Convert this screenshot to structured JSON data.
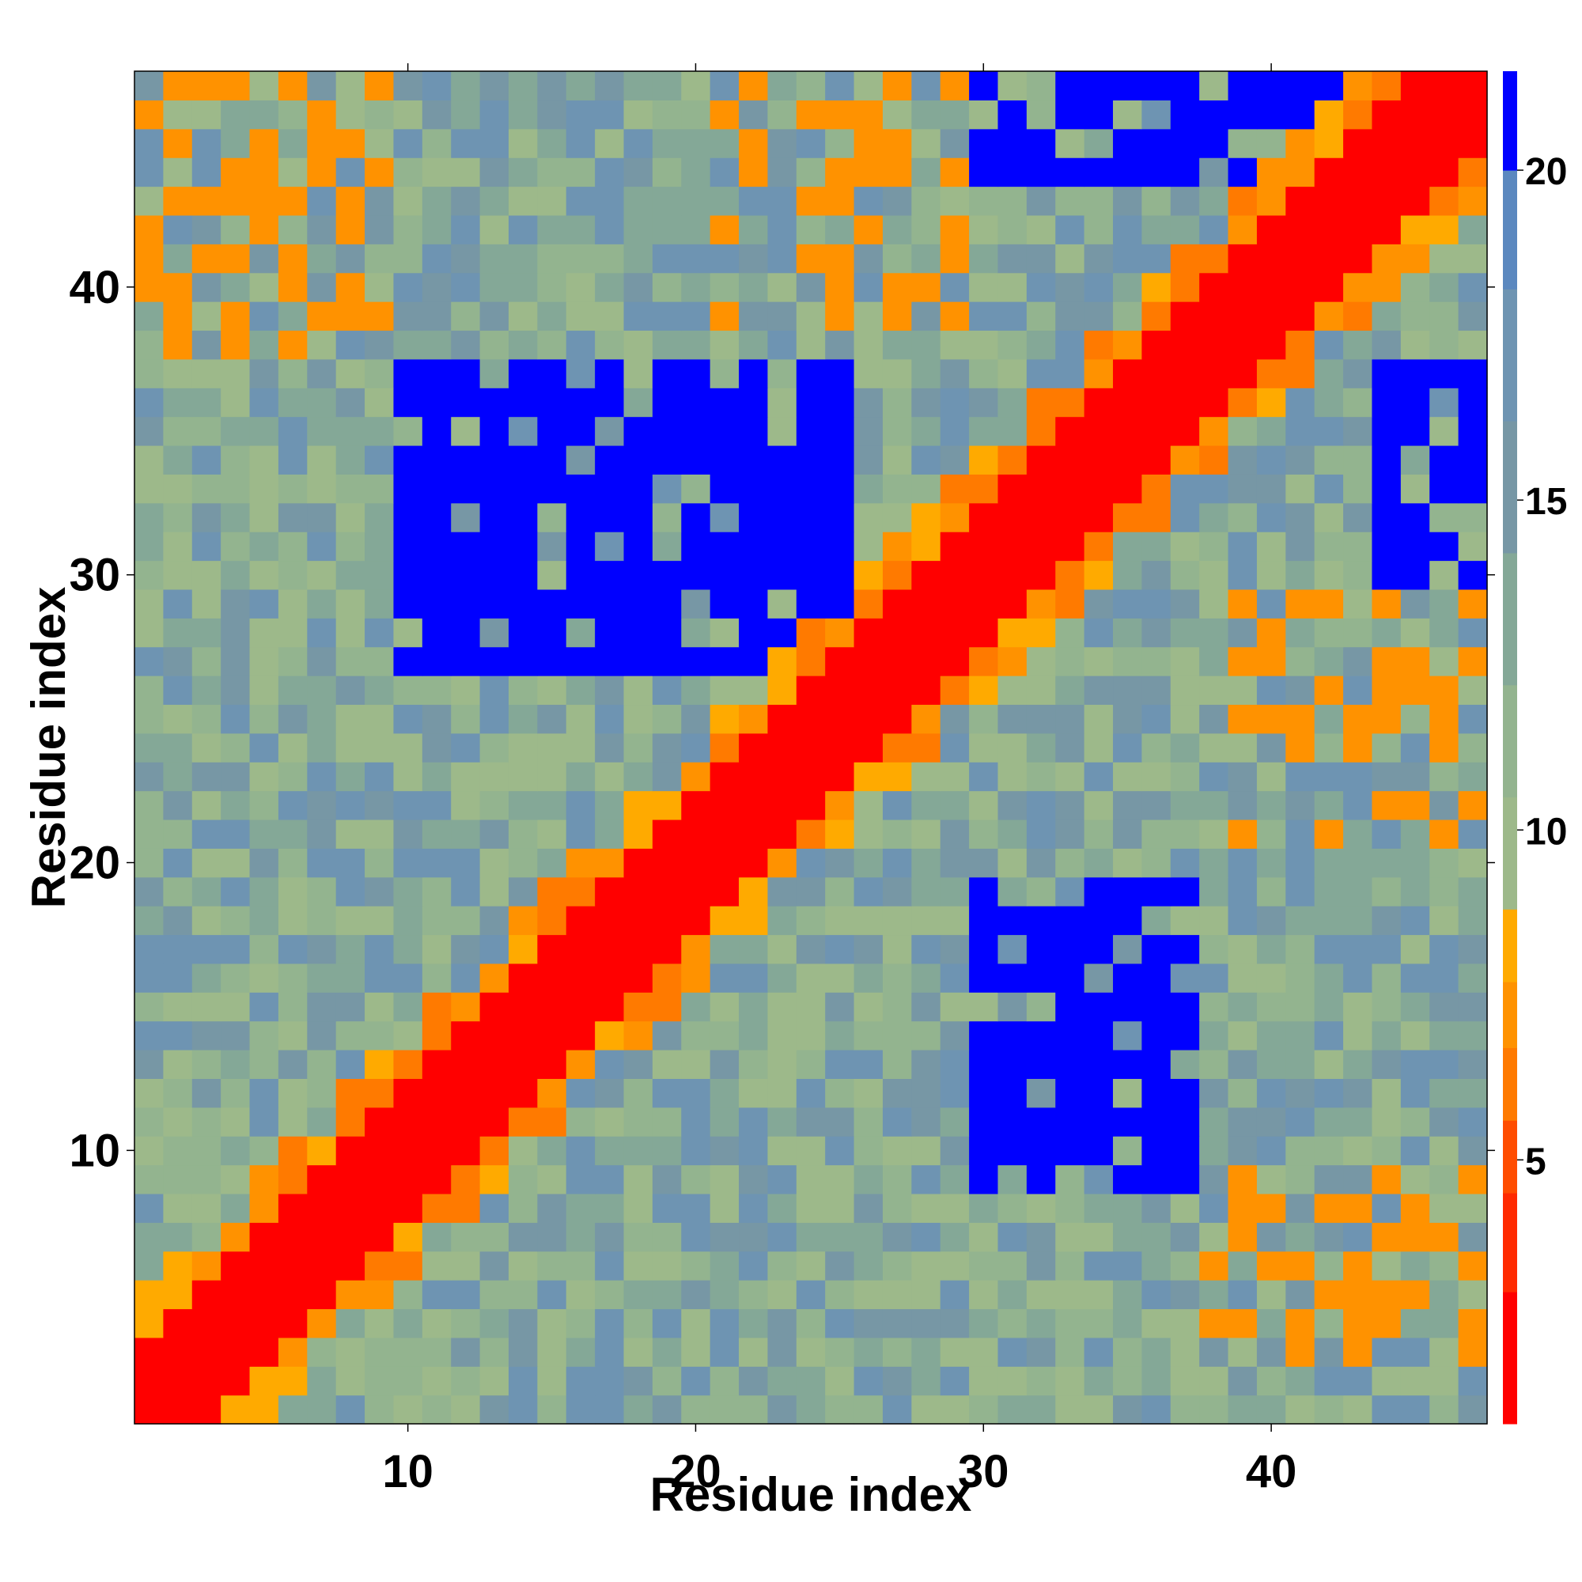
{
  "chart_data": {
    "type": "heatmap",
    "title": "",
    "xlabel": "Residue index",
    "ylabel": "Residue index",
    "n": 47,
    "x_ticks": [
      10,
      20,
      30,
      40
    ],
    "y_ticks": [
      10,
      20,
      30,
      40
    ],
    "xlim": [
      0.5,
      47.5
    ],
    "ylim": [
      0.5,
      47.5
    ],
    "colorbar": {
      "ticks": [
        5,
        10,
        15,
        20
      ],
      "range": [
        1,
        21.5
      ],
      "bands": [
        {
          "min": 1.0,
          "max": 3.0,
          "color": "#ff0000"
        },
        {
          "min": 3.0,
          "max": 4.5,
          "color": "#ff2a00"
        },
        {
          "min": 4.5,
          "max": 5.6,
          "color": "#ff4d00"
        },
        {
          "min": 5.6,
          "max": 6.7,
          "color": "#ff7a00"
        },
        {
          "min": 6.7,
          "max": 7.7,
          "color": "#ff9200"
        },
        {
          "min": 7.7,
          "max": 8.8,
          "color": "#ffaa00"
        },
        {
          "min": 8.8,
          "max": 10.5,
          "color": "#9db98a"
        },
        {
          "min": 10.5,
          "max": 12.2,
          "color": "#93b48f"
        },
        {
          "min": 12.2,
          "max": 14.2,
          "color": "#84a897"
        },
        {
          "min": 14.2,
          "max": 16.2,
          "color": "#7797a5"
        },
        {
          "min": 16.2,
          "max": 18.2,
          "color": "#6e94b2"
        },
        {
          "min": 18.2,
          "max": 20.0,
          "color": "#5b88bf"
        },
        {
          "min": 20.0,
          "max": 21.5,
          "color": "#0000ff"
        }
      ]
    },
    "value_model": {
      "diagonal_band_max_offset": 2,
      "diagonal_value": 2,
      "near_diagonal_value": 7,
      "secondary_band_values": [
        6,
        7,
        8
      ],
      "background_values": [
        10,
        12,
        14,
        16,
        18
      ],
      "contact_free_value": 21,
      "blue_regions": [
        {
          "i_range": [
            9,
            19
          ],
          "j_range": [
            30,
            37
          ],
          "value": 21
        },
        {
          "i_range": [
            27,
            37
          ],
          "j_range": [
            10,
            25
          ],
          "value": 21
        },
        {
          "i_range": [
            30,
            37
          ],
          "j_range": [
            44,
            47
          ],
          "value": 21
        },
        {
          "i_range": [
            44,
            47
          ],
          "j_range": [
            30,
            44
          ],
          "value": 21
        }
      ],
      "orange_regions": [
        {
          "i_range": [
            3,
            9
          ],
          "j_range": [
            38,
            47
          ],
          "value": 7
        },
        {
          "i_range": [
            38,
            47
          ],
          "j_range": [
            3,
            9
          ],
          "value": 7
        },
        {
          "i_range": [
            21,
            29
          ],
          "j_range": [
            39,
            47
          ],
          "value": 7
        },
        {
          "i_range": [
            39,
            47
          ],
          "j_range": [
            21,
            29
          ],
          "value": 7
        },
        {
          "i_range": [
            38,
            47
          ],
          "j_range": [
            1,
            3
          ],
          "value": 7
        }
      ]
    }
  }
}
